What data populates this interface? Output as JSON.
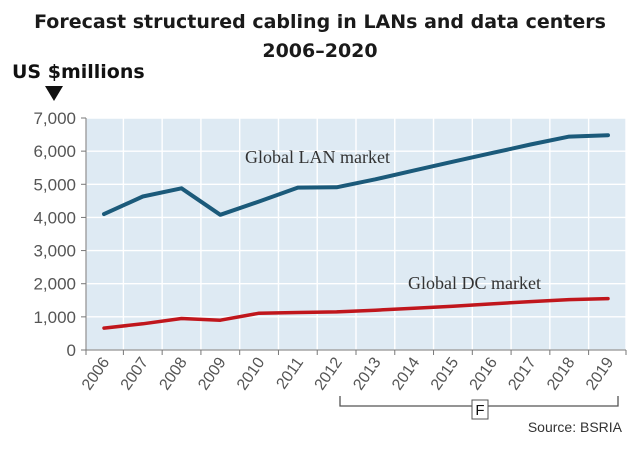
{
  "chart_data": {
    "type": "line",
    "title_line1": "Forecast structured cabling in LANs and data centers",
    "title_line2": "2006–2020",
    "ylabel": "US $millions",
    "xlabel": "",
    "ylim": [
      0,
      7000
    ],
    "yticks": [
      "0",
      "1,000",
      "2,000",
      "3,000",
      "4,000",
      "5,000",
      "6,000",
      "7,000"
    ],
    "ytick_values": [
      0,
      1000,
      2000,
      3000,
      4000,
      5000,
      6000,
      7000
    ],
    "categories": [
      "2006",
      "2007",
      "2008",
      "2009",
      "2010",
      "2011",
      "2012",
      "2013",
      "2014",
      "2015",
      "2016",
      "2017",
      "2018",
      "2019"
    ],
    "series": [
      {
        "name": "Global LAN market",
        "color": "#1b5a7a",
        "x": [
          2006,
          2007,
          2008,
          2009,
          2010,
          2011,
          2012,
          2013,
          2014,
          2015,
          2016,
          2017,
          2018,
          2019
        ],
        "values": [
          4100,
          4630,
          4880,
          4080,
          4480,
          4900,
          4910,
          5150,
          5420,
          5680,
          5940,
          6200,
          6440,
          6480
        ]
      },
      {
        "name": "Global DC market",
        "color": "#c0161c",
        "x": [
          2006,
          2007,
          2008,
          2009,
          2010,
          2011,
          2012,
          2013,
          2014,
          2015,
          2016,
          2017,
          2018,
          2019
        ],
        "values": [
          660,
          790,
          950,
          900,
          1110,
          1130,
          1150,
          1200,
          1260,
          1320,
          1390,
          1460,
          1520,
          1550
        ]
      }
    ],
    "grid": true,
    "forecast_marker": "F",
    "forecast_start": "2012",
    "source": "Source: BSRIA"
  }
}
